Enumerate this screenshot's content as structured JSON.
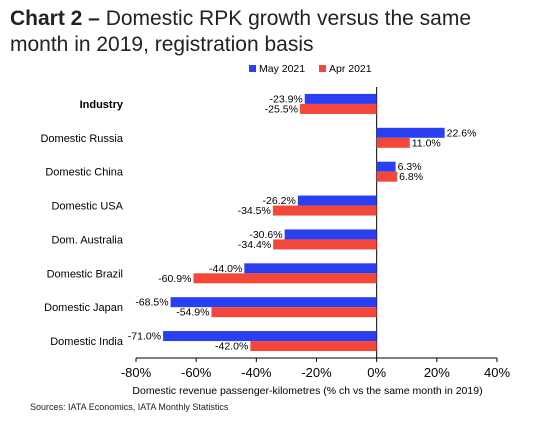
{
  "header": {
    "title_bold": "Chart 2 –",
    "title_rest": " Domestic RPK growth versus the same month in 2019, registration basis"
  },
  "source": "Sources: IATA Economics, IATA Monthly Statistics",
  "chart_data": {
    "type": "bar",
    "orientation": "horizontal",
    "categories": [
      "Industry",
      "Domestic Russia",
      "Domestic China",
      "Domestic USA",
      "Dom. Australia",
      "Domestic Brazil",
      "Domestic Japan",
      "Domestic India"
    ],
    "bold_categories": [
      "Industry"
    ],
    "series": [
      {
        "name": "May 2021",
        "color": "#2b3ff2",
        "values": [
          -23.9,
          22.6,
          6.3,
          -26.2,
          -30.6,
          -44.0,
          -68.5,
          -71.0
        ],
        "labels": [
          "-23.9%",
          "22.6%",
          "6.3%",
          "-26.2%",
          "-30.6%",
          "-44.0%",
          "-68.5%",
          "-71.0%"
        ]
      },
      {
        "name": "Apr 2021",
        "color": "#f2473a",
        "values": [
          -25.5,
          11.0,
          6.8,
          -34.5,
          -34.4,
          -60.9,
          -54.9,
          -42.0
        ],
        "labels": [
          "-25.5%",
          "11.0%",
          "6.8%",
          "-34.5%",
          "-34.4%",
          "-60.9%",
          "-54.9%",
          "-42.0%"
        ]
      }
    ],
    "xlim": [
      -80,
      40
    ],
    "xticks": [
      -80,
      -60,
      -40,
      -20,
      0,
      20,
      40
    ],
    "xtick_labels": [
      "-80%",
      "-60%",
      "-40%",
      "-20%",
      "0%",
      "20%",
      "40%"
    ],
    "xlabel": "Domestic revenue passenger-kilometres (% ch vs the same month in 2019)",
    "legend_position": "top"
  }
}
